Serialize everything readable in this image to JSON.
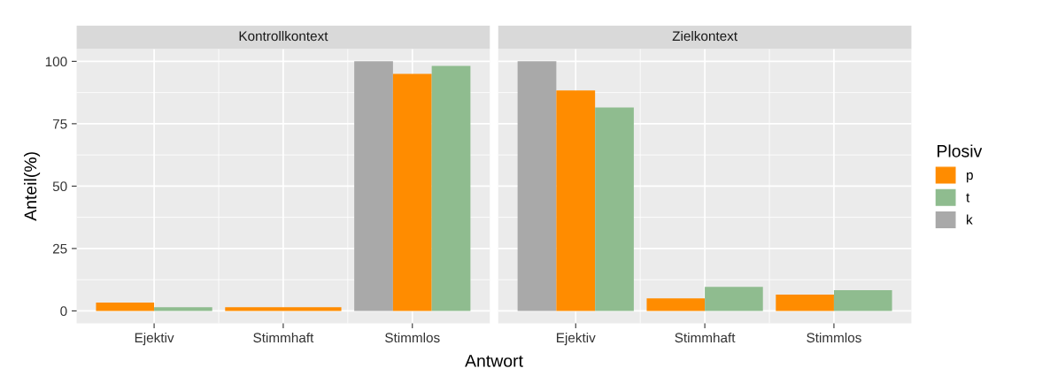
{
  "chart_data": [
    {
      "type": "bar",
      "title": "Kontrollkontext",
      "ylabel": "Anteil(%)",
      "xlabel": "Antwort",
      "categories": [
        "Ejektiv",
        "Stimmhaft",
        "Stimmlos"
      ],
      "series": [
        {
          "name": "k",
          "color": "#a9a9a9",
          "values": [
            null,
            null,
            100
          ]
        },
        {
          "name": "p",
          "color": "#ff8c00",
          "values": [
            3.3,
            1.5,
            95
          ]
        },
        {
          "name": "t",
          "color": "#8fbc8f",
          "values": [
            1.5,
            null,
            98.2
          ]
        }
      ],
      "ylim": [
        -5,
        105
      ],
      "yticks": [
        0,
        25,
        50,
        75,
        100
      ],
      "grid": true,
      "legend": "right",
      "legend_title": "Plosiv"
    },
    {
      "type": "bar",
      "title": "Zielkontext",
      "categories": [
        "Ejektiv",
        "Stimmhaft",
        "Stimmlos"
      ],
      "series": [
        {
          "color": "#a9a9a9",
          "values": [
            100,
            null,
            null
          ]
        },
        {
          "color": "#ff8c00",
          "values": [
            88.3,
            5,
            6.5
          ]
        },
        {
          "color": "#8fbc8f",
          "values": [
            81.5,
            9.6,
            8.3
          ]
        }
      ],
      "ylim": [
        -5,
        105
      ],
      "yticks": [
        0,
        25,
        50,
        75,
        100
      ],
      "grid": true,
      "tick_labels": "x"
    }
  ]
}
